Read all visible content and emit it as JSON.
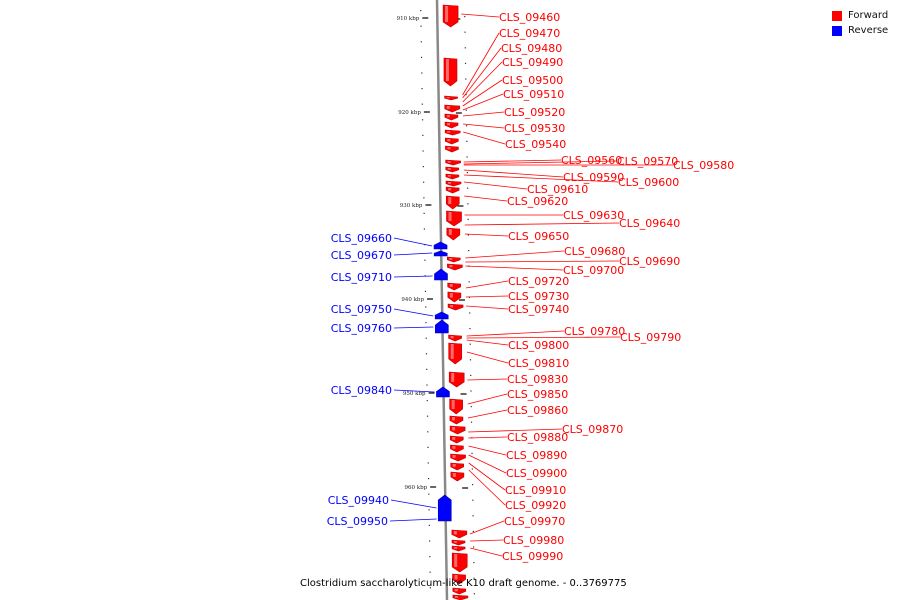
{
  "caption": "Clostridium saccharolyticum-like K10 draft genome. - 0..3769775",
  "legend": [
    {
      "label": "Forward",
      "color": "#ff0000"
    },
    {
      "label": "Reverse",
      "color": "#0000ff"
    }
  ],
  "colors": {
    "forward": "#ff0000",
    "reverse": "#0000ff",
    "backbone": "#888888"
  },
  "ticks": [
    "910 kbp",
    "920 kbp",
    "930 kbp",
    "940 kbp",
    "950 kbp",
    "960 kbp"
  ],
  "forward_labels": [
    "CLS_09460",
    "CLS_09470",
    "CLS_09480",
    "CLS_09490",
    "CLS_09500",
    "CLS_09510",
    "CLS_09520",
    "CLS_09530",
    "CLS_09540",
    "CLS_09560",
    "CLS_09570",
    "CLS_09580",
    "CLS_09590",
    "CLS_09600",
    "CLS_09610",
    "CLS_09620",
    "CLS_09630",
    "CLS_09640",
    "CLS_09650",
    "CLS_09680",
    "CLS_09690",
    "CLS_09700",
    "CLS_09720",
    "CLS_09730",
    "CLS_09740",
    "CLS_09780",
    "CLS_09790",
    "CLS_09800",
    "CLS_09810",
    "CLS_09830",
    "CLS_09850",
    "CLS_09860",
    "CLS_09870",
    "CLS_09880",
    "CLS_09890",
    "CLS_09900",
    "CLS_09910",
    "CLS_09920",
    "CLS_09970",
    "CLS_09980",
    "CLS_09990"
  ],
  "reverse_labels": [
    "CLS_09660",
    "CLS_09670",
    "CLS_09710",
    "CLS_09750",
    "CLS_09760",
    "CLS_09840",
    "CLS_09940",
    "CLS_09950"
  ]
}
